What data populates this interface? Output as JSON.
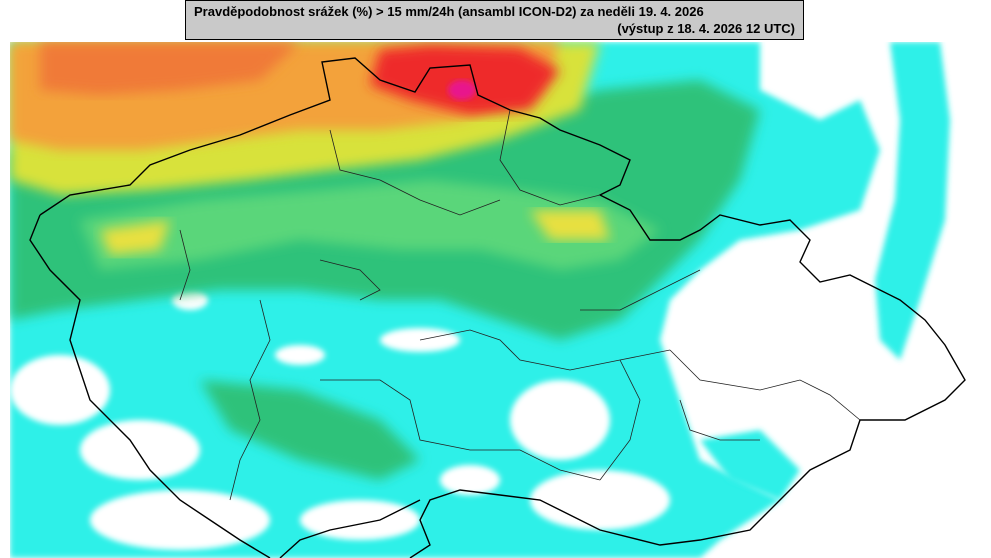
{
  "header": {
    "title": "Pravděpodobnost srážek (%) > 15 mm/24h (ansambl ICON-D2) za neděli 19. 4. 2026",
    "subtitle": "(výstup z 18. 4. 2026 12 UTC)"
  }
}
